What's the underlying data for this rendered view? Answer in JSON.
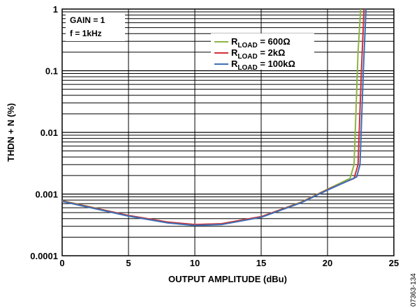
{
  "chart_data": {
    "type": "line",
    "title": "",
    "xlabel": "OUTPUT AMPLITUDE (dBu)",
    "ylabel": "THDN + N (%)",
    "xlim": [
      0,
      25
    ],
    "ylim": [
      0.0001,
      1
    ],
    "y_scale": "log",
    "grid": true,
    "x_ticks": [
      0,
      5,
      10,
      15,
      20,
      25
    ],
    "x_tick_labels": [
      "0",
      "5",
      "10",
      "15",
      "20",
      "25"
    ],
    "y_ticks": [
      0.0001,
      0.001,
      0.01,
      0.1,
      1
    ],
    "y_tick_labels": [
      "0.0001",
      "0.001",
      "0.01",
      "0.1",
      "1"
    ],
    "annotations": [
      "GAIN = 1",
      "f = 1kHz"
    ],
    "legend_placement": "top-center",
    "series": [
      {
        "name": "RLOAD = 600Ω",
        "legend_main": "R",
        "legend_sub": "LOAD",
        "legend_rest": " = 600Ω",
        "color": "#8db542",
        "x": [
          0,
          2,
          5,
          8,
          10,
          12,
          15,
          18,
          20,
          21.7,
          22.0,
          22.3,
          22.5
        ],
        "y": [
          0.00078,
          0.00063,
          0.00045,
          0.00035,
          0.00032,
          0.00033,
          0.00043,
          0.00074,
          0.0012,
          0.0018,
          0.003,
          0.2,
          1
        ]
      },
      {
        "name": "RLOAD = 2kΩ",
        "legend_main": "R",
        "legend_sub": "LOAD",
        "legend_rest": " = 2kΩ",
        "color": "#d42f3a",
        "x": [
          0,
          2,
          5,
          8,
          10,
          12,
          15,
          18,
          20,
          22.0,
          22.3,
          22.55,
          22.75
        ],
        "y": [
          0.00077,
          0.00062,
          0.00045,
          0.00035,
          0.00032,
          0.00033,
          0.00043,
          0.00073,
          0.00118,
          0.0018,
          0.003,
          0.1,
          1
        ]
      },
      {
        "name": "RLOAD = 100kΩ",
        "legend_main": "R",
        "legend_sub": "LOAD",
        "legend_rest": " = 100kΩ",
        "color": "#3c6fb6",
        "x": [
          0,
          2,
          5,
          8,
          10,
          12,
          15,
          18,
          20,
          22.2,
          22.45,
          22.7,
          22.9
        ],
        "y": [
          0.00076,
          0.00061,
          0.00044,
          0.00034,
          0.00031,
          0.00032,
          0.00042,
          0.00072,
          0.00116,
          0.0019,
          0.003,
          0.1,
          1
        ]
      }
    ]
  },
  "figure_id": "07363-134"
}
